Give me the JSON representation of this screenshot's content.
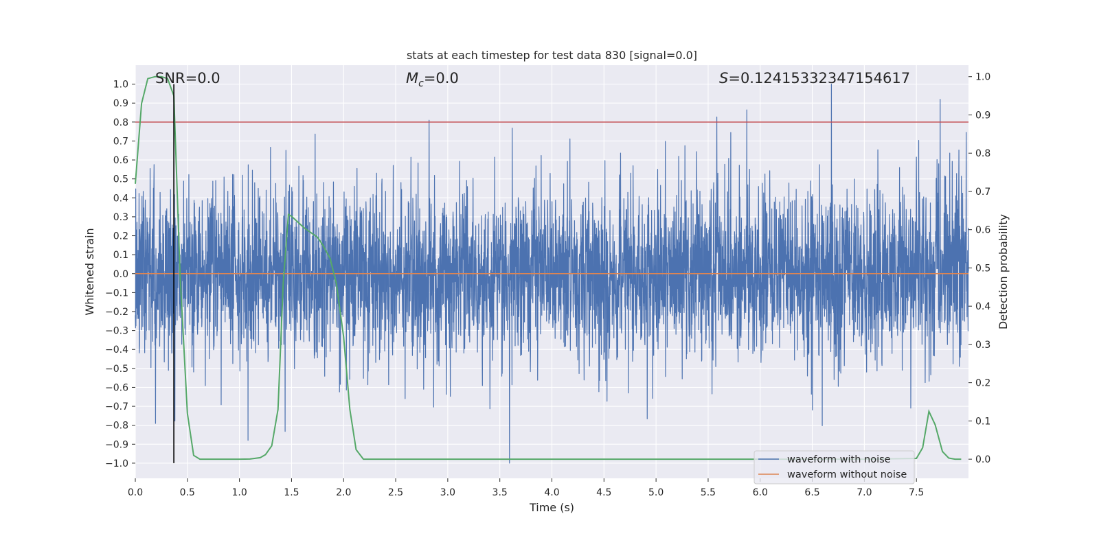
{
  "chart_data": {
    "type": "line",
    "title": "stats at each timestep for test data 830 [signal=0.0]",
    "xlabel": "Time (s)",
    "ylabel": "Whitened strain",
    "ylabel_right": "Detection probability",
    "xlim": [
      0.0,
      8.0
    ],
    "ylim": [
      -1.08,
      1.1
    ],
    "ylim_right": [
      -0.05,
      1.03
    ],
    "x_ticks": [
      0.0,
      0.5,
      1.0,
      1.5,
      2.0,
      2.5,
      3.0,
      3.5,
      4.0,
      4.5,
      5.0,
      5.5,
      6.0,
      6.5,
      7.0,
      7.5
    ],
    "x_tick_labels": [
      "0.0",
      "0.5",
      "1.0",
      "1.5",
      "2.0",
      "2.5",
      "3.0",
      "3.5",
      "4.0",
      "4.5",
      "5.0",
      "5.5",
      "6.0",
      "6.5",
      "7.0",
      "7.5"
    ],
    "y_ticks": [
      -1.0,
      -0.9,
      -0.8,
      -0.7,
      -0.6,
      -0.5,
      -0.4,
      -0.3,
      -0.2,
      -0.1,
      0.0,
      0.1,
      0.2,
      0.3,
      0.4,
      0.5,
      0.6,
      0.7,
      0.8,
      0.9,
      1.0
    ],
    "y_tick_labels": [
      "−1.0",
      "−0.9",
      "−0.8",
      "−0.7",
      "−0.6",
      "−0.5",
      "−0.4",
      "−0.3",
      "−0.2",
      "−0.1",
      "0.0",
      "0.1",
      "0.2",
      "0.3",
      "0.4",
      "0.5",
      "0.6",
      "0.7",
      "0.8",
      "0.9",
      "1.0"
    ],
    "y2_ticks": [
      0.0,
      0.1,
      0.2,
      0.3,
      0.4,
      0.5,
      0.6,
      0.7,
      0.8,
      0.9,
      1.0
    ],
    "y2_tick_labels": [
      "0.0",
      "0.1",
      "0.2",
      "0.3",
      "0.4",
      "0.5",
      "0.6",
      "0.7",
      "0.8",
      "0.9",
      "1.0"
    ],
    "annotations": {
      "snr": "SNR=0.0",
      "mc": "M_c=0.0",
      "mc_base": "M",
      "mc_sub": "c",
      "mc_value": "=0.0",
      "s": "S=0.12415332347154617",
      "s_base": "S",
      "s_value": "=0.12415332347154617"
    },
    "threshold_line": {
      "y": 0.8,
      "color": "#c44e52"
    },
    "marker_line": {
      "x": 0.37,
      "y_range": [
        -1.0,
        1.0
      ],
      "color": "#000000"
    },
    "series": [
      {
        "name": "waveform with noise",
        "color": "#4c72b0",
        "axis": "left",
        "description": "dense whitened noise, approx ±0.25 rms with spikes up to ±0.95",
        "generator": {
          "n_samples": 4000,
          "seed": 830,
          "sigma": 0.22,
          "clip": 1.0
        }
      },
      {
        "name": "waveform without noise",
        "color": "#dd8452",
        "axis": "left",
        "x": [
          0.0,
          8.0
        ],
        "y": [
          0.0,
          0.0
        ]
      },
      {
        "name": "detection probability",
        "color": "#55a868",
        "axis": "right",
        "x": [
          0.0,
          0.06,
          0.12,
          0.19,
          0.25,
          0.31,
          0.37,
          0.43,
          0.5,
          0.56,
          0.62,
          0.75,
          1.0,
          1.1,
          1.2,
          1.25,
          1.31,
          1.37,
          1.42,
          1.47,
          1.5,
          1.56,
          1.62,
          1.75,
          1.8,
          1.87,
          1.93,
          2.0,
          2.06,
          2.12,
          2.19,
          2.25,
          3.0,
          4.0,
          5.0,
          6.0,
          7.0,
          7.5,
          7.56,
          7.62,
          7.68,
          7.75,
          7.81,
          7.87,
          7.93
        ],
        "y": [
          0.72,
          0.93,
          0.995,
          1.0,
          1.0,
          0.995,
          0.95,
          0.48,
          0.12,
          0.01,
          0.0,
          0.0,
          0.0,
          0.0005,
          0.004,
          0.012,
          0.035,
          0.13,
          0.46,
          0.64,
          0.635,
          0.62,
          0.605,
          0.58,
          0.56,
          0.525,
          0.46,
          0.32,
          0.13,
          0.025,
          0.0,
          0.0,
          0.0,
          0.0,
          0.0,
          0.0,
          0.0,
          0.002,
          0.03,
          0.125,
          0.09,
          0.02,
          0.003,
          0.0,
          0.0
        ]
      }
    ],
    "legend": {
      "position": "lower-right",
      "entries": [
        "waveform with noise",
        "waveform without noise"
      ]
    }
  }
}
